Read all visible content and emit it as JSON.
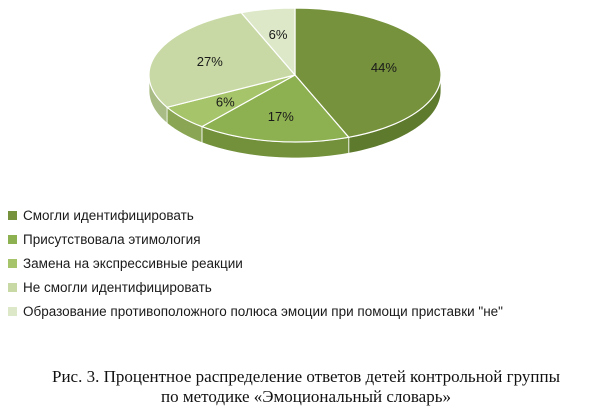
{
  "chart_data": {
    "type": "pie",
    "title": "",
    "categories": [
      "Смогли идентифицировать",
      "Присутствовала этимология",
      "Замена на экспрессивные реакции",
      "Не смогли идентифицировать",
      "Образование противоположного полюса эмоции при помощи приставки \"не\""
    ],
    "values": [
      44,
      17,
      6,
      27,
      6
    ],
    "labels": [
      "44%",
      "17%",
      "6%",
      "27%",
      "6%"
    ],
    "colors": [
      "#76923c",
      "#8db050",
      "#a6c46a",
      "#c8d9a5",
      "#dce8c8"
    ],
    "side_colors": [
      "#5e7a2c",
      "#73913b",
      "#8aa553",
      "#a9bc85",
      "#bccaa8"
    ],
    "unit": "%",
    "style": "3d",
    "legend_position": "bottom-left"
  },
  "caption": {
    "line1": "Рис. 3. Процентное распределение ответов детей контрольной группы",
    "line2": "по методике «Эмоциональный словарь»"
  }
}
